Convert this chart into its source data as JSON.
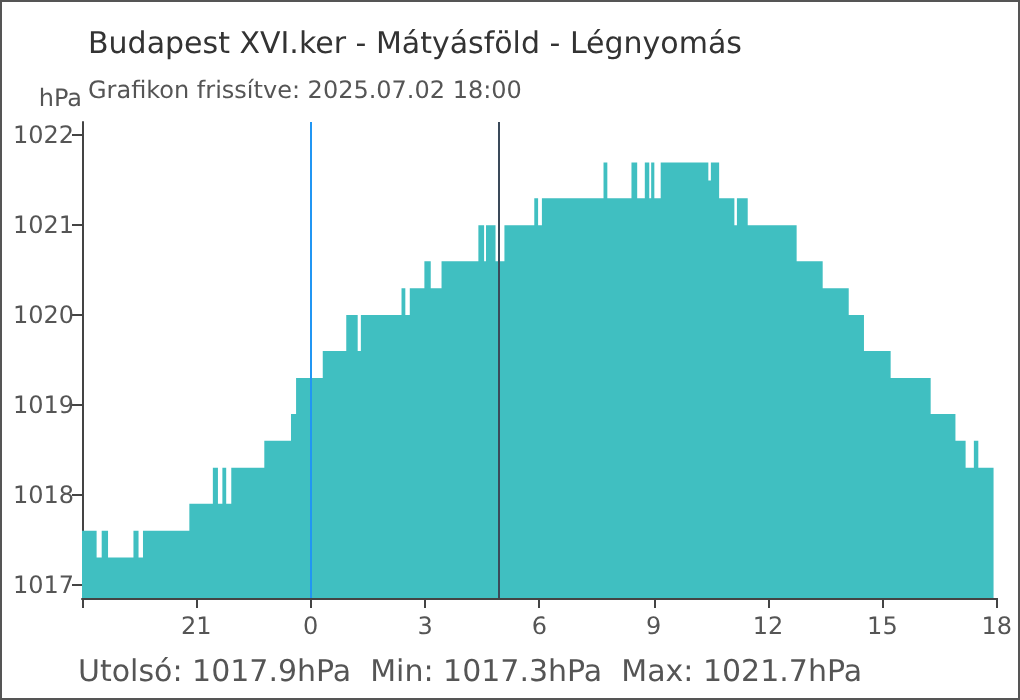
{
  "chart_data": {
    "type": "area",
    "title": "Budapest XVI.ker - Mátyásföld - Légnyomás",
    "subtitle": "Grafikon frissítve: 2025.07.02 18:00",
    "ylabel": "hPa",
    "annotations": [
      "Utolsó: 1017.9hPa",
      "Min: 1017.3hPa",
      "Max: 1021.7hPa"
    ],
    "x": [
      "2025-07-01T18:00",
      "2025-07-01T18:23",
      "2025-07-01T18:31",
      "2025-07-01T18:41",
      "2025-07-01T19:21",
      "2025-07-01T19:29",
      "2025-07-01T19:36",
      "2025-07-01T20:49",
      "2025-07-01T21:26",
      "2025-07-01T21:34",
      "2025-07-01T21:41",
      "2025-07-01T21:47",
      "2025-07-01T21:55",
      "2025-07-01T22:47",
      "2025-07-01T23:29",
      "2025-07-01T23:37",
      "2025-07-02T00:19",
      "2025-07-02T00:56",
      "2025-07-02T01:14",
      "2025-07-02T01:19",
      "2025-07-02T02:23",
      "2025-07-02T02:29",
      "2025-07-02T02:36",
      "2025-07-02T02:59",
      "2025-07-02T03:09",
      "2025-07-02T03:26",
      "2025-07-02T04:24",
      "2025-07-02T04:33",
      "2025-07-02T04:36",
      "2025-07-02T04:51",
      "2025-07-02T05:05",
      "2025-07-02T05:52",
      "2025-07-02T05:58",
      "2025-07-02T06:04",
      "2025-07-02T07:41",
      "2025-07-02T07:47",
      "2025-07-02T08:25",
      "2025-07-02T08:34",
      "2025-07-02T08:46",
      "2025-07-02T08:53",
      "2025-07-02T08:56",
      "2025-07-02T09:01",
      "2025-07-02T09:11",
      "2025-07-02T10:26",
      "2025-07-02T10:30",
      "2025-07-02T10:43",
      "2025-07-02T11:07",
      "2025-07-02T11:11",
      "2025-07-02T11:28",
      "2025-07-02T12:45",
      "2025-07-02T13:26",
      "2025-07-02T14:07",
      "2025-07-02T14:31",
      "2025-07-02T15:13",
      "2025-07-02T16:16",
      "2025-07-02T16:55",
      "2025-07-02T17:11",
      "2025-07-02T17:24",
      "2025-07-02T17:31",
      "2025-07-02T17:55"
    ],
    "series": [
      {
        "color": "#40bfc1",
        "values": [
          1017.6,
          1017.3,
          1017.6,
          1017.3,
          1017.6,
          1017.3,
          1017.6,
          1017.9,
          1018.3,
          1017.9,
          1018.3,
          1017.9,
          1018.3,
          1018.6,
          1018.9,
          1019.3,
          1019.6,
          1020.0,
          1019.6,
          1020.0,
          1020.3,
          1020.0,
          1020.3,
          1020.6,
          1020.3,
          1020.6,
          1021.0,
          1020.6,
          1021.0,
          1020.6,
          1021.0,
          1021.3,
          1021.0,
          1021.3,
          1021.7,
          1021.3,
          1021.7,
          1021.3,
          1021.7,
          1021.3,
          1021.7,
          1021.3,
          1021.7,
          1021.5,
          1021.7,
          1021.3,
          1021.0,
          1021.3,
          1021.0,
          1020.6,
          1020.3,
          1020.0,
          1019.6,
          1019.3,
          1018.9,
          1018.6,
          1018.3,
          1018.6,
          1018.3,
          1018.3
        ]
      }
    ],
    "xlim": [
      "2025-07-01T18:00",
      "2025-07-02T18:00"
    ],
    "xticks": [
      {
        "value": "2025-07-01T18:00",
        "label": null
      },
      {
        "value": "2025-07-01T21:00",
        "label": "21"
      },
      {
        "value": "2025-07-02T00:00",
        "label": "0"
      },
      {
        "value": "2025-07-02T03:00",
        "label": "3"
      },
      {
        "value": "2025-07-02T06:00",
        "label": "6"
      },
      {
        "value": "2025-07-02T09:00",
        "label": "9"
      },
      {
        "value": "2025-07-02T12:00",
        "label": "12"
      },
      {
        "value": "2025-07-02T15:00",
        "label": "15"
      },
      {
        "value": "2025-07-02T18:00",
        "label": "18"
      }
    ],
    "ylim": [
      1016.85,
      1022.15
    ],
    "yticks": [
      1017,
      1018,
      1019,
      1020,
      1021,
      1022
    ],
    "ref_lines": [
      {
        "axis": "x",
        "value": "2025-07-02T00:00",
        "label": null,
        "color": "#2196f3"
      },
      {
        "axis": "x",
        "value": "2025-07-02T04:55",
        "label": null,
        "color": "#3a4a5a"
      }
    ]
  }
}
